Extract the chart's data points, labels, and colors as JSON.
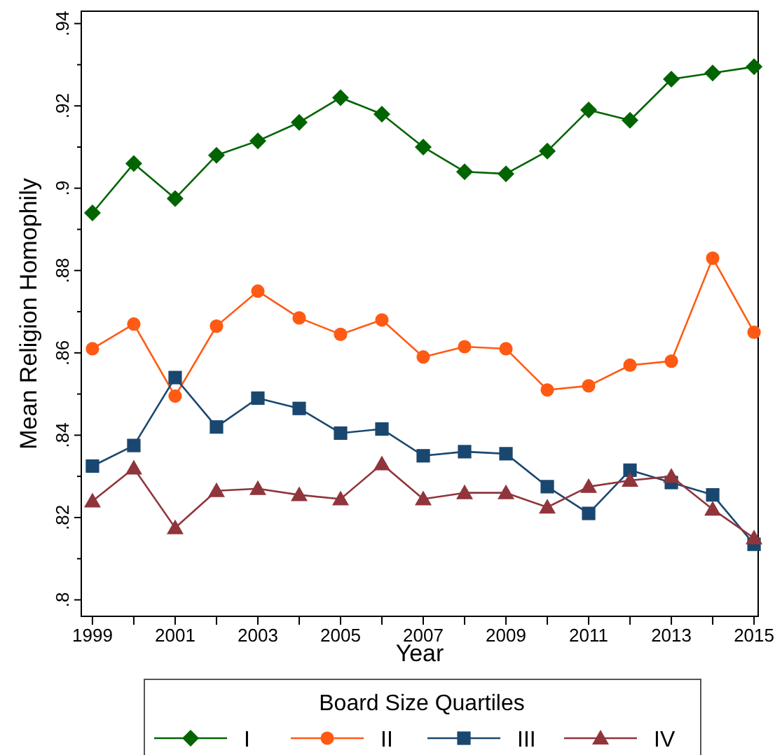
{
  "chart_data": {
    "type": "line",
    "xlabel": "Year",
    "ylabel": "Mean Religion Homophily",
    "legend_title": "Board Size Quartiles",
    "legend": "bottom",
    "grid": false,
    "x": [
      1999,
      2000,
      2001,
      2002,
      2003,
      2004,
      2005,
      2006,
      2007,
      2008,
      2009,
      2010,
      2011,
      2012,
      2013,
      2014,
      2015
    ],
    "xlim": [
      1998.73,
      2015.1
    ],
    "xticks": [
      1999,
      {
        "value": 2000,
        "label": null
      },
      2001,
      {
        "value": 2002,
        "label": null
      },
      2003,
      {
        "value": 2004,
        "label": null
      },
      2005,
      {
        "value": 2006,
        "label": null
      },
      2007,
      {
        "value": 2008,
        "label": null
      },
      2009,
      {
        "value": 2010,
        "label": null
      },
      2011,
      {
        "value": 2012,
        "label": null
      },
      2013,
      {
        "value": 2014,
        "label": null
      },
      2015
    ],
    "ylim": [
      0.796,
      0.943
    ],
    "yticks": [
      {
        "value": 0.8,
        "label": ".8"
      },
      {
        "value": 0.81,
        "label": null
      },
      {
        "value": 0.82,
        "label": ".82"
      },
      {
        "value": 0.83,
        "label": null
      },
      {
        "value": 0.84,
        "label": ".84"
      },
      {
        "value": 0.85,
        "label": null
      },
      {
        "value": 0.86,
        "label": ".86"
      },
      {
        "value": 0.87,
        "label": null
      },
      {
        "value": 0.88,
        "label": ".88"
      },
      {
        "value": 0.89,
        "label": null
      },
      {
        "value": 0.9,
        "label": ".9"
      },
      {
        "value": 0.91,
        "label": null
      },
      {
        "value": 0.92,
        "label": ".92"
      },
      {
        "value": 0.93,
        "label": null
      },
      {
        "value": 0.94,
        "label": ".94"
      }
    ],
    "series": [
      {
        "name": "I",
        "color": "#006400",
        "marker": "diamond",
        "values": [
          0.894,
          0.906,
          0.8975,
          0.908,
          0.9115,
          0.916,
          0.922,
          0.918,
          0.91,
          0.904,
          0.9035,
          0.909,
          0.919,
          0.9165,
          0.9265,
          0.928,
          0.9295
        ]
      },
      {
        "name": "II",
        "color": "#ff5a14",
        "marker": "circle",
        "values": [
          0.861,
          0.867,
          0.8495,
          0.8665,
          0.875,
          0.8685,
          0.8645,
          0.868,
          0.859,
          0.8615,
          0.861,
          0.851,
          0.852,
          0.857,
          0.858,
          0.883,
          0.865
        ]
      },
      {
        "name": "III",
        "color": "#1a476f",
        "marker": "square",
        "values": [
          0.8325,
          0.8375,
          0.854,
          0.842,
          0.849,
          0.8465,
          0.8405,
          0.8415,
          0.835,
          0.836,
          0.8355,
          0.8275,
          0.821,
          0.8315,
          0.8285,
          0.8255,
          0.8135
        ]
      },
      {
        "name": "IV",
        "color": "#90353b",
        "marker": "triangle",
        "values": [
          0.824,
          0.832,
          0.8175,
          0.8265,
          0.827,
          0.8255,
          0.8245,
          0.833,
          0.8245,
          0.826,
          0.826,
          0.8225,
          0.8275,
          0.829,
          0.83,
          0.822,
          0.815
        ]
      }
    ]
  }
}
